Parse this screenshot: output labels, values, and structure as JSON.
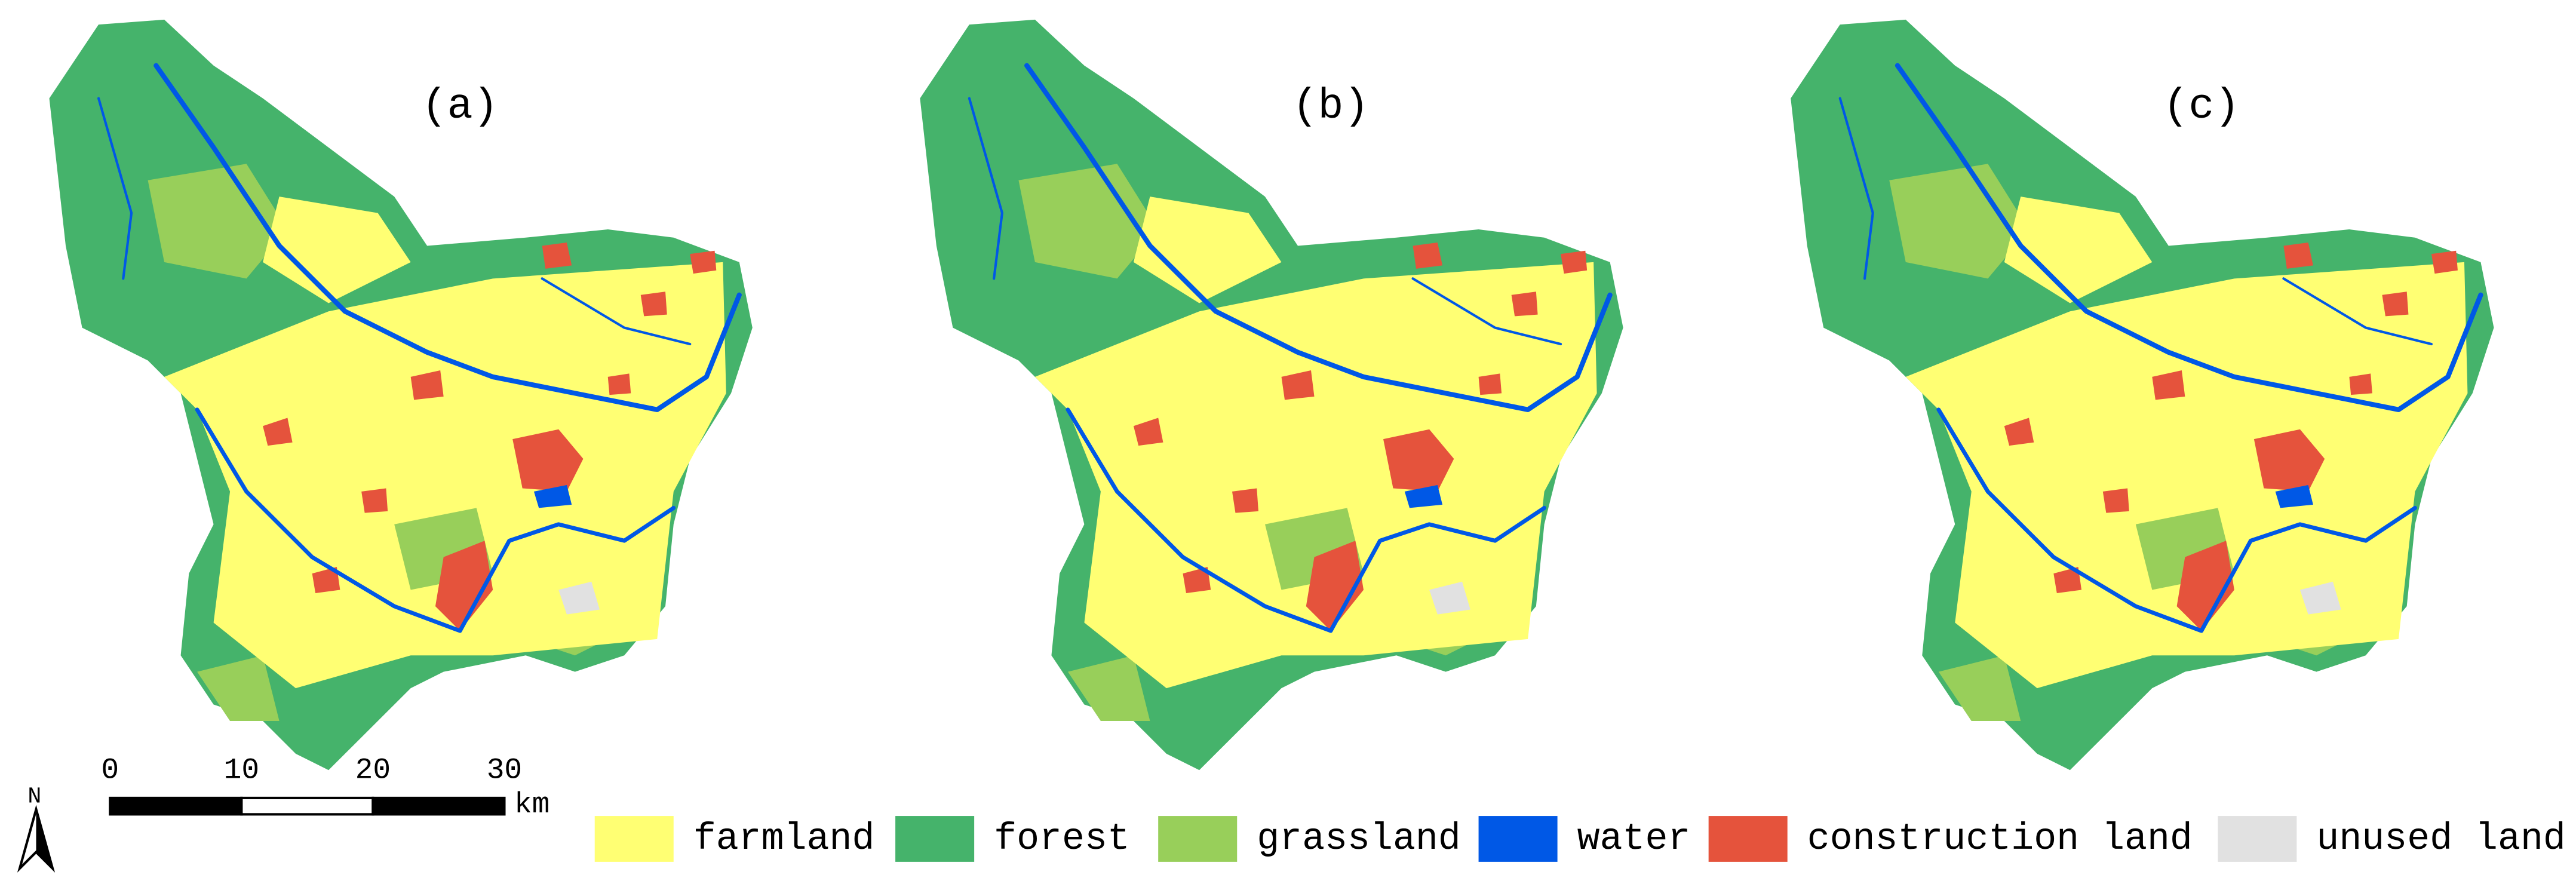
{
  "panels": [
    {
      "label": "(a)"
    },
    {
      "label": "(b)"
    },
    {
      "label": "(c)"
    }
  ],
  "north": "N",
  "scale_bar": {
    "ticks": [
      0,
      10,
      20,
      30
    ],
    "unit": "km"
  },
  "legend": [
    {
      "label": "farmland",
      "color": "#ffff73"
    },
    {
      "label": "forest",
      "color": "#45b36b"
    },
    {
      "label": "grassland",
      "color": "#98cf5a"
    },
    {
      "label": "water",
      "color": "#0058e6"
    },
    {
      "label": "construction land",
      "color": "#e5533c"
    },
    {
      "label": "unused land",
      "color": "#e1e1e1"
    }
  ]
}
